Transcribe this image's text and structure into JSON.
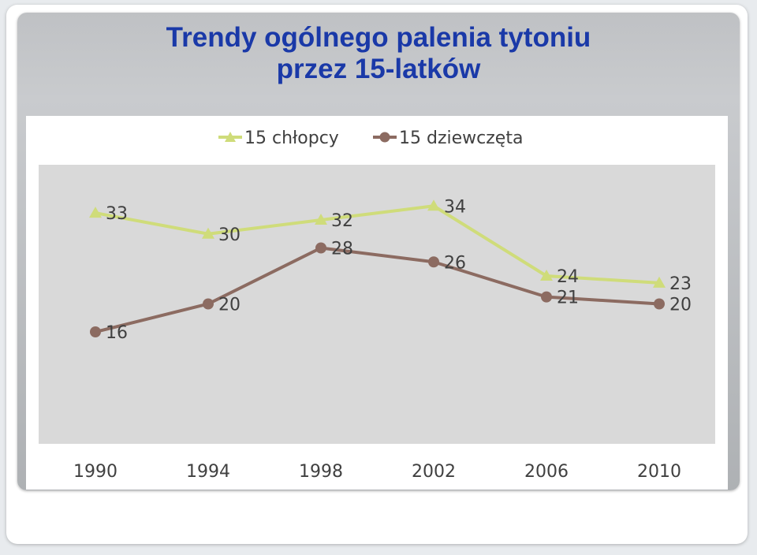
{
  "title": {
    "line1": "Trendy ogólnego palenia tytoniu",
    "line2": "przez 15-latków"
  },
  "colors": {
    "title": "#1a39a8",
    "boys": "#cfdc7a",
    "girls": "#8c6b61",
    "plot_bg": "#d9d9d9"
  },
  "chart_data": {
    "type": "line",
    "title": "Trendy ogólnego palenia tytoniu przez 15-latków",
    "xlabel": "",
    "ylabel": "",
    "categories": [
      "1990",
      "1994",
      "1998",
      "2002",
      "2006",
      "2010"
    ],
    "ylim": [
      0,
      40
    ],
    "grid": false,
    "legend_position": "top",
    "series": [
      {
        "name": "15 chłopcy",
        "marker": "triangle",
        "values": [
          33,
          30,
          32,
          34,
          24,
          23
        ]
      },
      {
        "name": "15 dziewczęta",
        "marker": "circle",
        "values": [
          16,
          20,
          28,
          26,
          21,
          20
        ]
      }
    ]
  }
}
